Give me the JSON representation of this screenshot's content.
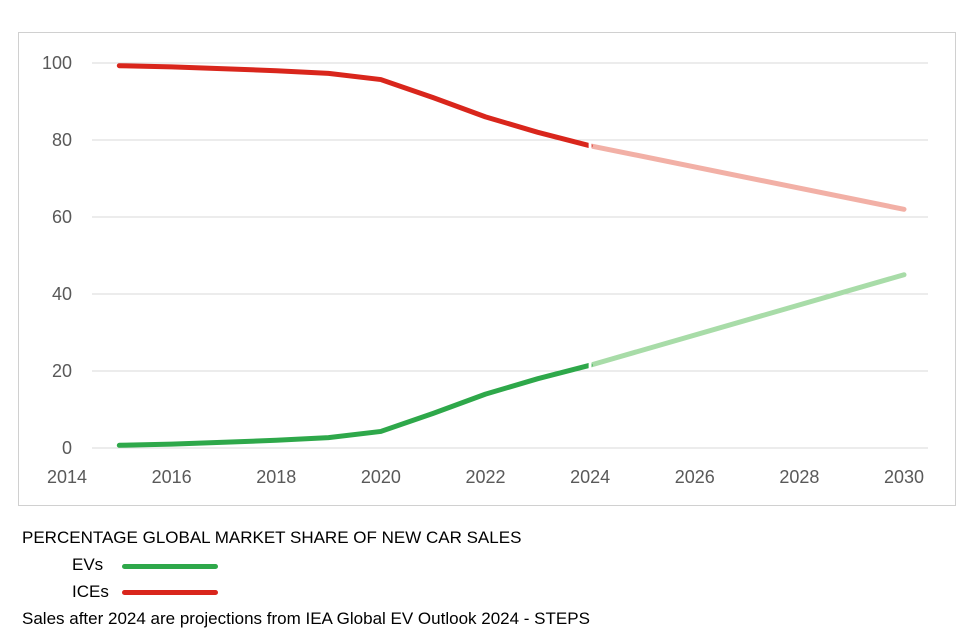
{
  "chart_data": {
    "type": "line",
    "title": "PERCENTAGE GLOBAL MARKET SHARE OF NEW CAR SALES",
    "xlim": [
      2014,
      2030
    ],
    "ylim": [
      0,
      100
    ],
    "x_ticks": [
      2014,
      2016,
      2018,
      2020,
      2022,
      2024,
      2026,
      2028,
      2030
    ],
    "y_ticks": [
      0,
      20,
      40,
      60,
      80,
      100
    ],
    "grid": true,
    "series": [
      {
        "name": "EVs",
        "color": "#2ea84a",
        "projection_color": "#a8dca8",
        "actual": [
          [
            2015,
            0.7
          ],
          [
            2016,
            1.0
          ],
          [
            2017,
            1.5
          ],
          [
            2018,
            2.0
          ],
          [
            2019,
            2.7
          ],
          [
            2020,
            4.3
          ],
          [
            2021,
            9.0
          ],
          [
            2022,
            14.0
          ],
          [
            2023,
            18.0
          ],
          [
            2024,
            21.5
          ]
        ],
        "projected": [
          [
            2024,
            21.5
          ],
          [
            2030,
            45.0
          ]
        ]
      },
      {
        "name": "ICEs",
        "color": "#d9261c",
        "projection_color": "#f2b0a6",
        "actual": [
          [
            2015,
            99.3
          ],
          [
            2016,
            99.0
          ],
          [
            2017,
            98.5
          ],
          [
            2018,
            98.0
          ],
          [
            2019,
            97.3
          ],
          [
            2020,
            95.7
          ],
          [
            2021,
            91.0
          ],
          [
            2022,
            86.0
          ],
          [
            2023,
            82.0
          ],
          [
            2024,
            78.5
          ]
        ],
        "projected": [
          [
            2024,
            78.5
          ],
          [
            2030,
            62.0
          ]
        ]
      }
    ],
    "legend": [
      {
        "label": "EVs",
        "color": "#2ea84a"
      },
      {
        "label": "ICEs",
        "color": "#d9261c"
      }
    ],
    "note": "Sales after 2024 are projections from IEA Global EV Outlook 2024 - STEPS"
  }
}
